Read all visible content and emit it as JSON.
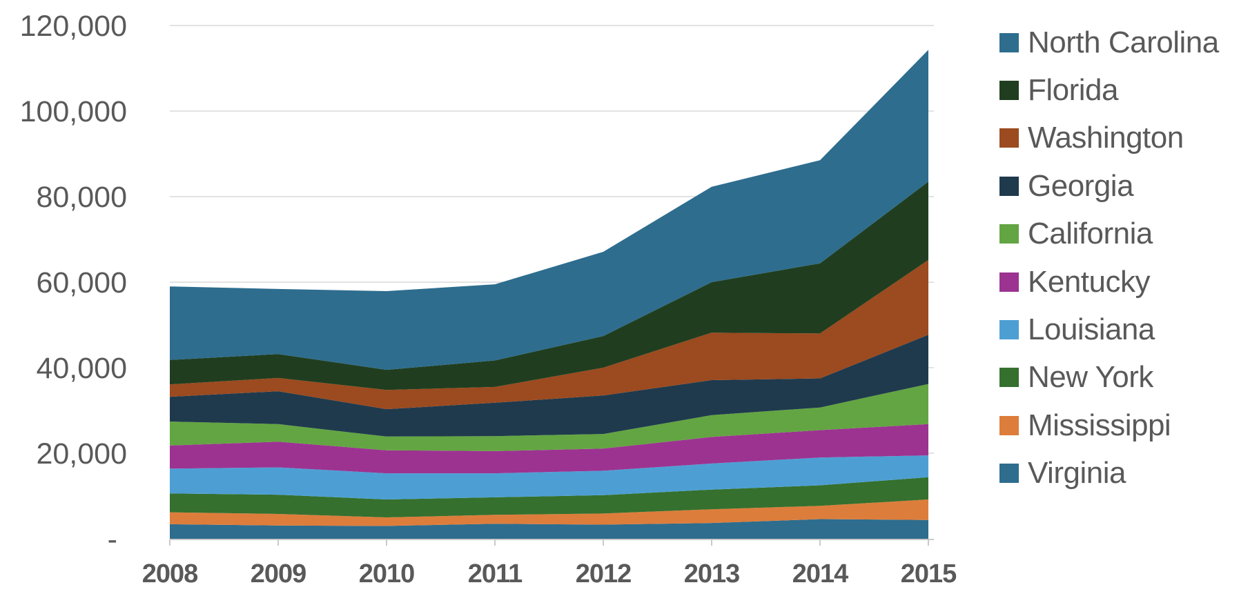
{
  "chart_data": {
    "type": "area",
    "stacked": true,
    "title": "",
    "xlabel": "",
    "ylabel": "",
    "grid": true,
    "legend_position": "right",
    "background": "#FFFFFF",
    "text_color": "#595959",
    "gridline_color": "#D9D9D9",
    "axis_line_color": "#C9C9C9",
    "ylim": [
      0,
      120000
    ],
    "categories": [
      "2008",
      "2009",
      "2010",
      "2011",
      "2012",
      "2013",
      "2014",
      "2015"
    ],
    "y_ticks": [
      {
        "value": 120000,
        "label": "120,000"
      },
      {
        "value": 100000,
        "label": "100,000"
      },
      {
        "value": 80000,
        "label": "80,000"
      },
      {
        "value": 60000,
        "label": "60,000"
      },
      {
        "value": 40000,
        "label": "40,000"
      },
      {
        "value": 20000,
        "label": "20,000"
      },
      {
        "value": 0,
        "label": "-"
      }
    ],
    "stack_note": "series listed in legend order (top of stack first); last series is the bottom band",
    "series": [
      {
        "name": "North Carolina",
        "color": "#2E6D8E",
        "values": [
          17200,
          15200,
          18400,
          17800,
          19700,
          22300,
          24100,
          30800
        ]
      },
      {
        "name": "Florida",
        "color": "#203E1F",
        "values": [
          5700,
          5600,
          4700,
          6200,
          7400,
          11800,
          16400,
          18300
        ]
      },
      {
        "name": "Washington",
        "color": "#9C4A1F",
        "values": [
          2900,
          3100,
          4500,
          3700,
          6500,
          11100,
          10500,
          17500
        ]
      },
      {
        "name": "Georgia",
        "color": "#1F3A4D",
        "values": [
          5800,
          7700,
          6400,
          7800,
          9000,
          8200,
          6800,
          11500
        ]
      },
      {
        "name": "California",
        "color": "#63A542",
        "values": [
          5600,
          4100,
          3200,
          3500,
          3400,
          5100,
          5300,
          9400
        ]
      },
      {
        "name": "Kentucky",
        "color": "#9C3391",
        "values": [
          5400,
          6000,
          5400,
          5200,
          5200,
          6200,
          6400,
          7300
        ]
      },
      {
        "name": "Louisiana",
        "color": "#4D9FD3",
        "values": [
          5800,
          6400,
          6100,
          5600,
          5700,
          6100,
          6500,
          5100
        ]
      },
      {
        "name": "New York",
        "color": "#35702E",
        "values": [
          4400,
          4500,
          4200,
          4100,
          4300,
          4600,
          4800,
          5200
        ]
      },
      {
        "name": "Mississippi",
        "color": "#DD7D3B",
        "values": [
          2800,
          2700,
          2000,
          2100,
          2600,
          3200,
          3100,
          4800
        ]
      },
      {
        "name": "Virginia",
        "color": "#2E6D8E",
        "values": [
          3400,
          3100,
          3000,
          3500,
          3300,
          3700,
          4600,
          4400
        ]
      }
    ]
  }
}
